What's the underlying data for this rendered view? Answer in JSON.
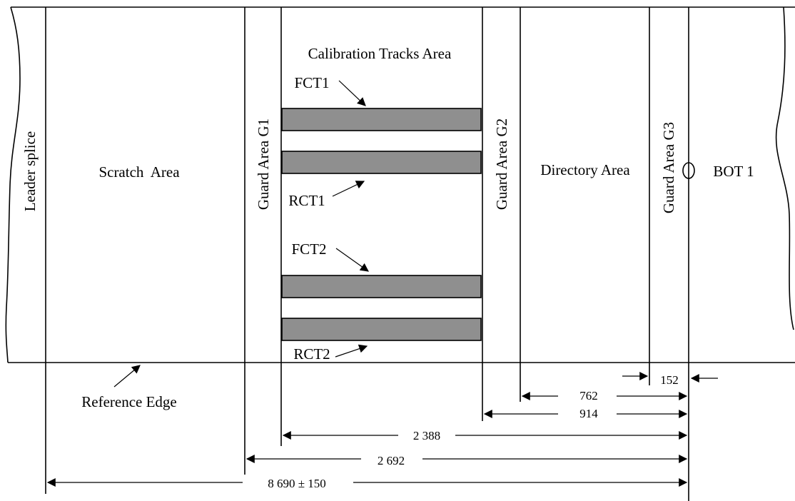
{
  "labels": {
    "leader_splice": "Leader splice",
    "scratch_area": "Scratch  Area",
    "guard_g1": "Guard Area G1",
    "calibration_area": "Calibration Tracks Area",
    "fct1": "FCT1",
    "rct1": "RCT1",
    "fct2": "FCT2",
    "rct2": "RCT2",
    "guard_g2": "Guard Area G2",
    "directory_area": "Directory Area",
    "guard_g3": "Guard Area G3",
    "bot1": "BOT 1",
    "reference_edge": "Reference Edge"
  },
  "dimensions": {
    "d152": "152",
    "d762": "762",
    "d914": "914",
    "d2388": "2 388",
    "d2692": "2 692",
    "d8690": "8 690 ± 150"
  },
  "colors": {
    "track_fill": "#8f8f8f",
    "line": "#000000"
  }
}
